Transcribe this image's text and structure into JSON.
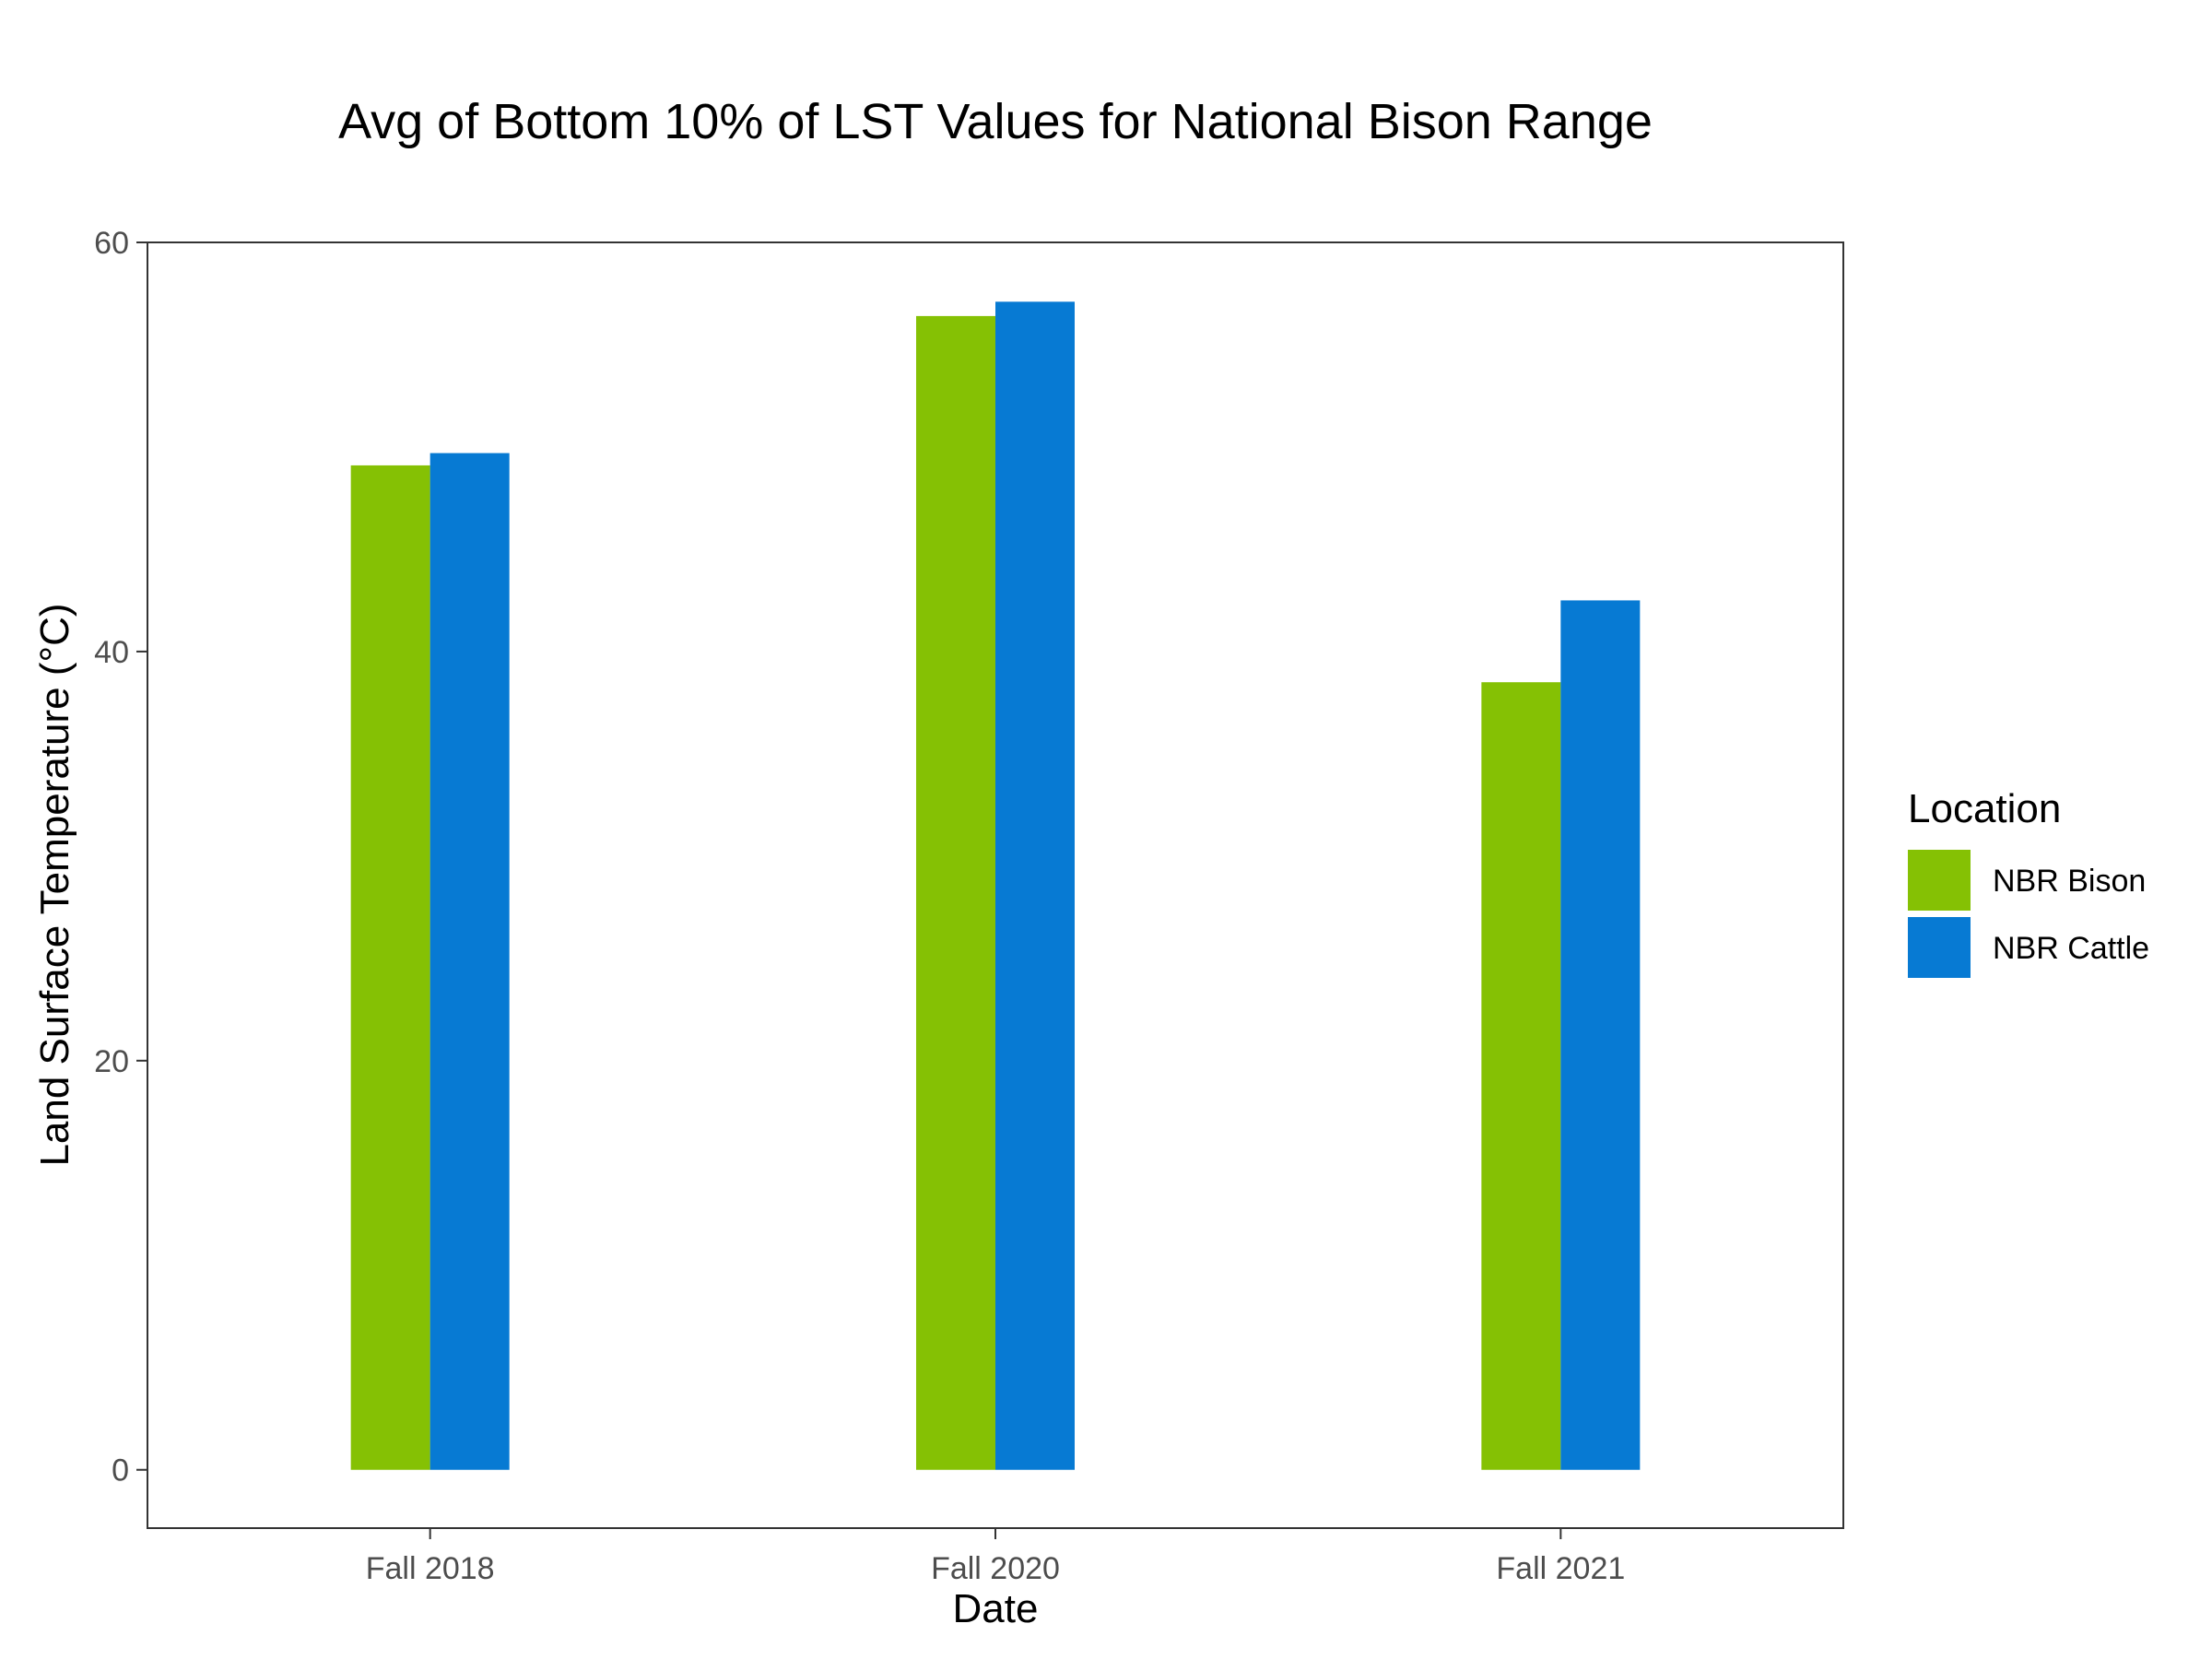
{
  "chart_data": {
    "type": "bar",
    "title": "Avg of Bottom 10% of LST Values for National Bison Range",
    "xlabel": "Date",
    "ylabel": "Land Surface Temperature (°C)",
    "categories": [
      "Fall 2018",
      "Fall 2020",
      "Fall 2021"
    ],
    "series": [
      {
        "name": "NBR Bison",
        "color": "#85C104",
        "values": [
          49.1,
          56.4,
          38.5
        ]
      },
      {
        "name": "NBR Cattle",
        "color": "#077AD3",
        "values": [
          49.7,
          57.1,
          42.5
        ]
      }
    ],
    "ylim": [
      -2.85,
      60
    ],
    "yticks": [
      0,
      20,
      40,
      60
    ],
    "grid": false,
    "legend": {
      "title": "Location",
      "placement": "right"
    }
  }
}
